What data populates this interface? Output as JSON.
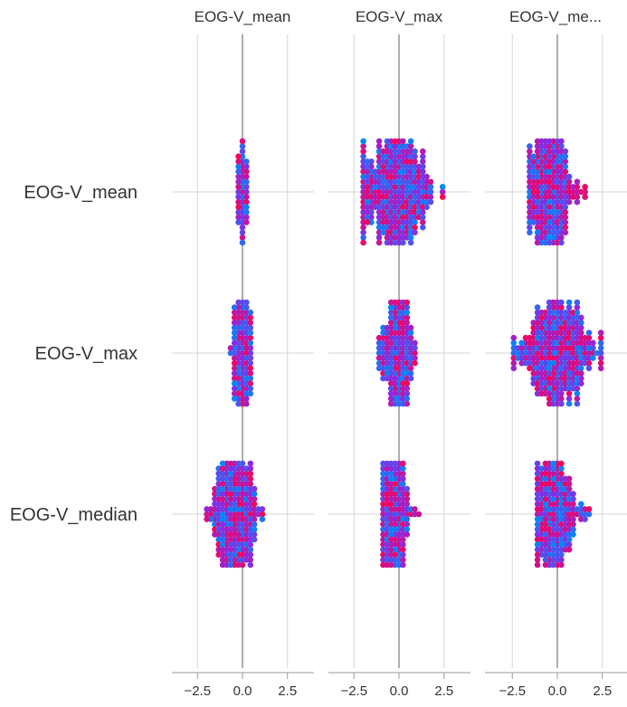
{
  "chart_data": {
    "type": "scatter",
    "subtype": "shap-interaction-beeswarm-matrix",
    "column_titles": [
      "EOG-V_mean",
      "EOG-V_max",
      "EOG-V_me..."
    ],
    "row_labels": [
      "EOG-V_mean",
      "EOG-V_max",
      "EOG-V_median"
    ],
    "features": [
      "EOG-V_mean",
      "EOG-V_max",
      "EOG-V_median"
    ],
    "xlim": [
      -3.5,
      3.5
    ],
    "x_ticks": [
      -2.5,
      0.0,
      2.5
    ],
    "x_tick_labels": [
      "−2.5",
      "0.0",
      "2.5"
    ],
    "grid": true,
    "colormap": [
      "#008afb",
      "#8a2be2",
      "#ff0052"
    ],
    "cells": [
      {
        "row": "EOG-V_mean",
        "col": "EOG-V_mean",
        "x_min": -0.2,
        "x_max": 0.2,
        "center": 0.0
      },
      {
        "row": "EOG-V_mean",
        "col": "EOG-V_max",
        "x_min": -1.9,
        "x_max": 3.0,
        "center": -0.2
      },
      {
        "row": "EOG-V_mean",
        "col": "EOG-V_median",
        "x_min": -1.6,
        "x_max": 1.6,
        "center": -0.4
      },
      {
        "row": "EOG-V_max",
        "col": "EOG-V_mean",
        "x_min": -0.8,
        "x_max": 0.5,
        "center": 0.0
      },
      {
        "row": "EOG-V_max",
        "col": "EOG-V_max",
        "x_min": -1.1,
        "x_max": 0.9,
        "center": -0.1
      },
      {
        "row": "EOG-V_max",
        "col": "EOG-V_median",
        "x_min": -2.4,
        "x_max": 2.4,
        "center": 0.0
      },
      {
        "row": "EOG-V_median",
        "col": "EOG-V_mean",
        "x_min": -2.0,
        "x_max": 1.2,
        "center": -0.4
      },
      {
        "row": "EOG-V_median",
        "col": "EOG-V_max",
        "x_min": -0.8,
        "x_max": 1.1,
        "center": -0.2
      },
      {
        "row": "EOG-V_median",
        "col": "EOG-V_median",
        "x_min": -1.2,
        "x_max": 1.8,
        "center": -0.3
      }
    ]
  }
}
